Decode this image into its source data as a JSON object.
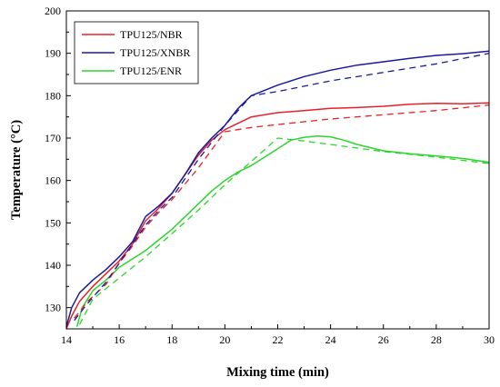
{
  "chart_data": {
    "type": "line",
    "title": "",
    "xlabel": "Mixing time (min)",
    "ylabel": "Temperature (°C)",
    "xlim": [
      14,
      30
    ],
    "ylim": [
      125,
      200
    ],
    "xticks": [
      14,
      16,
      18,
      20,
      22,
      24,
      26,
      28,
      30
    ],
    "yticks": [
      130,
      140,
      150,
      160,
      170,
      180,
      190,
      200
    ],
    "grid": false,
    "legend_position": "top-left",
    "series": [
      {
        "name": "TPU125/NBR",
        "color": "#e8202a",
        "style": "solid",
        "x": [
          14.0,
          14.2,
          14.5,
          15.0,
          15.5,
          16.0,
          16.5,
          17.0,
          17.5,
          18.0,
          18.5,
          19.0,
          19.5,
          20.0,
          20.5,
          21.0,
          22.0,
          23.0,
          24.0,
          25.0,
          26.0,
          27.0,
          28.0,
          29.0,
          30.0
        ],
        "y": [
          125.0,
          128.0,
          131.5,
          135.0,
          138.0,
          141.0,
          145.0,
          150.5,
          153.5,
          157.0,
          161.5,
          166.0,
          169.5,
          172.0,
          173.5,
          175.0,
          176.0,
          176.5,
          177.0,
          177.2,
          177.5,
          178.0,
          178.2,
          178.1,
          178.3
        ]
      },
      {
        "name": "TPU125/XNBR",
        "color": "#1a1a9e",
        "style": "solid",
        "x": [
          14.0,
          14.2,
          14.5,
          15.0,
          15.5,
          16.0,
          16.5,
          17.0,
          17.5,
          18.0,
          18.5,
          19.0,
          19.5,
          20.0,
          20.5,
          21.0,
          22.0,
          23.0,
          24.0,
          25.0,
          26.0,
          27.0,
          28.0,
          29.0,
          30.0
        ],
        "y": [
          125.5,
          130.0,
          133.5,
          136.5,
          139.0,
          142.0,
          145.5,
          151.5,
          154.0,
          157.0,
          161.5,
          166.5,
          170.0,
          173.0,
          177.0,
          180.0,
          182.5,
          184.5,
          186.0,
          187.2,
          188.0,
          188.8,
          189.5,
          189.9,
          190.5
        ]
      },
      {
        "name": "TPU125/ENR",
        "color": "#2bd62b",
        "style": "solid",
        "x": [
          14.4,
          14.6,
          15.0,
          15.5,
          16.0,
          16.5,
          17.0,
          17.5,
          18.0,
          18.5,
          19.0,
          19.5,
          20.0,
          20.5,
          21.0,
          21.5,
          22.0,
          22.5,
          23.0,
          23.5,
          24.0,
          24.5,
          25.0,
          26.0,
          27.0,
          28.0,
          29.0,
          30.0
        ],
        "y": [
          125.5,
          130.0,
          134.0,
          136.5,
          139.5,
          141.5,
          143.5,
          146.0,
          148.5,
          151.5,
          154.5,
          157.5,
          160.0,
          162.0,
          163.5,
          165.5,
          167.5,
          169.5,
          170.2,
          170.5,
          170.3,
          169.5,
          168.5,
          167.0,
          166.3,
          165.8,
          165.2,
          164.3
        ]
      },
      {
        "color": "#e8202a",
        "style": "dashed",
        "x": [
          14.3,
          14.8,
          15.5,
          16.0,
          16.5,
          17.0,
          17.5,
          18.0,
          19.0,
          20.0,
          21.0,
          22.0,
          24.0,
          26.0,
          28.0,
          30.0
        ],
        "y": [
          127.5,
          131.5,
          135.5,
          140.5,
          144.5,
          149.0,
          152.5,
          155.5,
          163.0,
          171.5,
          172.5,
          173.2,
          174.5,
          175.5,
          176.5,
          177.8
        ]
      },
      {
        "color": "#1a1a9e",
        "style": "dashed",
        "x": [
          14.3,
          14.8,
          15.5,
          16.0,
          16.5,
          17.0,
          17.5,
          18.0,
          19.0,
          20.0,
          21.0,
          22.0,
          24.0,
          26.0,
          28.0,
          30.0
        ],
        "y": [
          127.0,
          131.0,
          136.0,
          140.5,
          145.0,
          149.5,
          153.0,
          156.0,
          165.0,
          173.0,
          180.0,
          181.0,
          183.5,
          185.5,
          187.5,
          190.0
        ]
      },
      {
        "color": "#2bd62b",
        "style": "dashed",
        "x": [
          14.5,
          15.0,
          16.0,
          17.0,
          18.0,
          19.0,
          20.0,
          21.0,
          22.0,
          23.0,
          24.0,
          26.0,
          28.0,
          30.0
        ],
        "y": [
          126.0,
          132.0,
          137.0,
          142.0,
          147.5,
          153.0,
          159.0,
          164.5,
          170.0,
          169.3,
          168.5,
          166.8,
          165.5,
          164.0
        ]
      }
    ]
  }
}
